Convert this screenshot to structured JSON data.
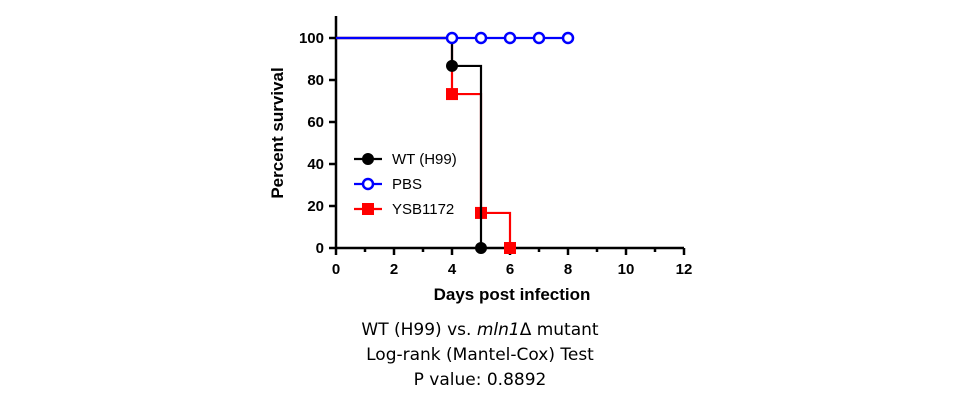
{
  "chart_data": {
    "type": "line",
    "subtype": "kaplan-meier step",
    "xlabel": "Days post infection",
    "ylabel": "Percent survival",
    "xlim": [
      0,
      12
    ],
    "ylim": [
      0,
      100
    ],
    "x_ticks": [
      "0",
      "2",
      "4",
      "6",
      "8",
      "10",
      "12"
    ],
    "y_ticks": [
      "0",
      "20",
      "40",
      "60",
      "80",
      "100"
    ],
    "legend_position": "left",
    "series": [
      {
        "name": "WT (H99)",
        "color": "#000000",
        "marker": "filled-circle",
        "x": [
          0,
          4,
          5
        ],
        "y": [
          100,
          86.7,
          0
        ],
        "marker_points": [
          [
            4,
            86.7
          ],
          [
            5,
            0
          ]
        ]
      },
      {
        "name": "PBS",
        "color": "#0000ff",
        "marker": "open-circle",
        "x": [
          0,
          8
        ],
        "y": [
          100,
          100
        ],
        "marker_points": [
          [
            4,
            100
          ],
          [
            5,
            100
          ],
          [
            6,
            100
          ],
          [
            7,
            100
          ],
          [
            8,
            100
          ]
        ]
      },
      {
        "name": "YSB1172",
        "color": "#ff0000",
        "marker": "filled-square",
        "x": [
          0,
          4,
          5,
          6
        ],
        "y": [
          100,
          73.3,
          16.7,
          0
        ],
        "marker_points": [
          [
            4,
            73.3
          ],
          [
            5,
            16.7
          ],
          [
            6,
            0
          ]
        ]
      }
    ]
  },
  "caption": {
    "line1_prefix": "WT (H99) vs. ",
    "line1_gene": "mln1",
    "line1_suffix": "Δ mutant",
    "line2": "Log-rank (Mantel-Cox) Test",
    "line3": "P value: 0.8892"
  }
}
